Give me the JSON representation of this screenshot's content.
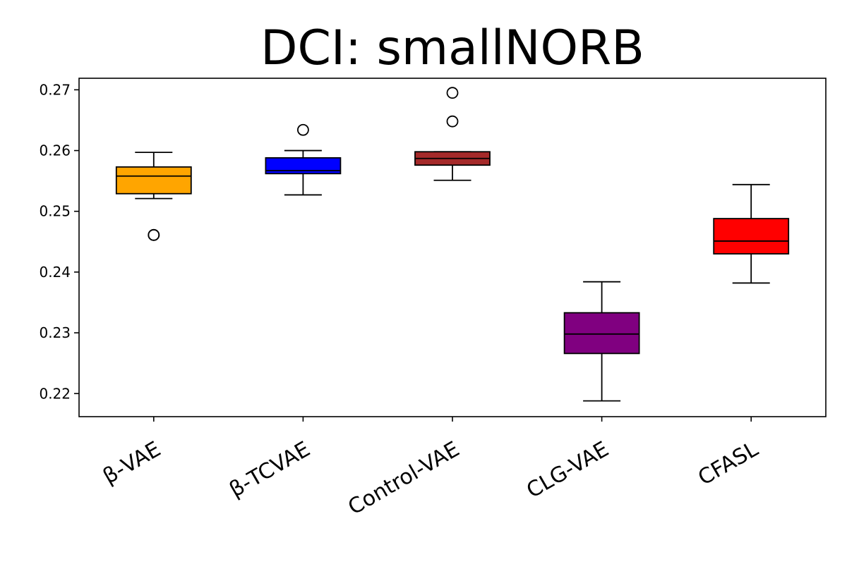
{
  "chart_data": {
    "type": "boxplot",
    "title": "DCI: smallNORB",
    "xlabel": "",
    "ylabel": "",
    "ylim": [
      0.2162,
      0.2719
    ],
    "yticks": [
      0.22,
      0.23,
      0.24,
      0.25,
      0.26,
      0.27
    ],
    "ytick_labels": [
      "0.22",
      "0.23",
      "0.24",
      "0.25",
      "0.26",
      "0.27"
    ],
    "categories": [
      "β-VAE",
      "β-TCVAE",
      "Control-VAE",
      "CLG-VAE",
      "CFASL"
    ],
    "boxes": [
      {
        "name": "β-VAE",
        "color": "#ffa500",
        "whisker_low": 0.2521,
        "q1": 0.2529,
        "median": 0.2558,
        "q3": 0.2573,
        "whisker_high": 0.2597,
        "outliers": [
          0.2461,
          0.2461
        ]
      },
      {
        "name": "β-TCVAE",
        "color": "#0000ff",
        "whisker_low": 0.2527,
        "q1": 0.2562,
        "median": 0.2567,
        "q3": 0.2588,
        "whisker_high": 0.26,
        "outliers": [
          0.2634
        ]
      },
      {
        "name": "Control-VAE",
        "color": "#a52a2a",
        "whisker_low": 0.2551,
        "q1": 0.2576,
        "median": 0.2587,
        "q3": 0.2598,
        "whisker_high": 0.2598,
        "outliers": [
          0.2648,
          0.2695
        ]
      },
      {
        "name": "CLG-VAE",
        "color": "#800080",
        "whisker_low": 0.2188,
        "q1": 0.2266,
        "median": 0.2298,
        "q3": 0.2333,
        "whisker_high": 0.2384,
        "outliers": []
      },
      {
        "name": "CFASL",
        "color": "#ff0000",
        "whisker_low": 0.2382,
        "q1": 0.243,
        "median": 0.2451,
        "q3": 0.2488,
        "whisker_high": 0.2544,
        "outliers": []
      }
    ]
  }
}
